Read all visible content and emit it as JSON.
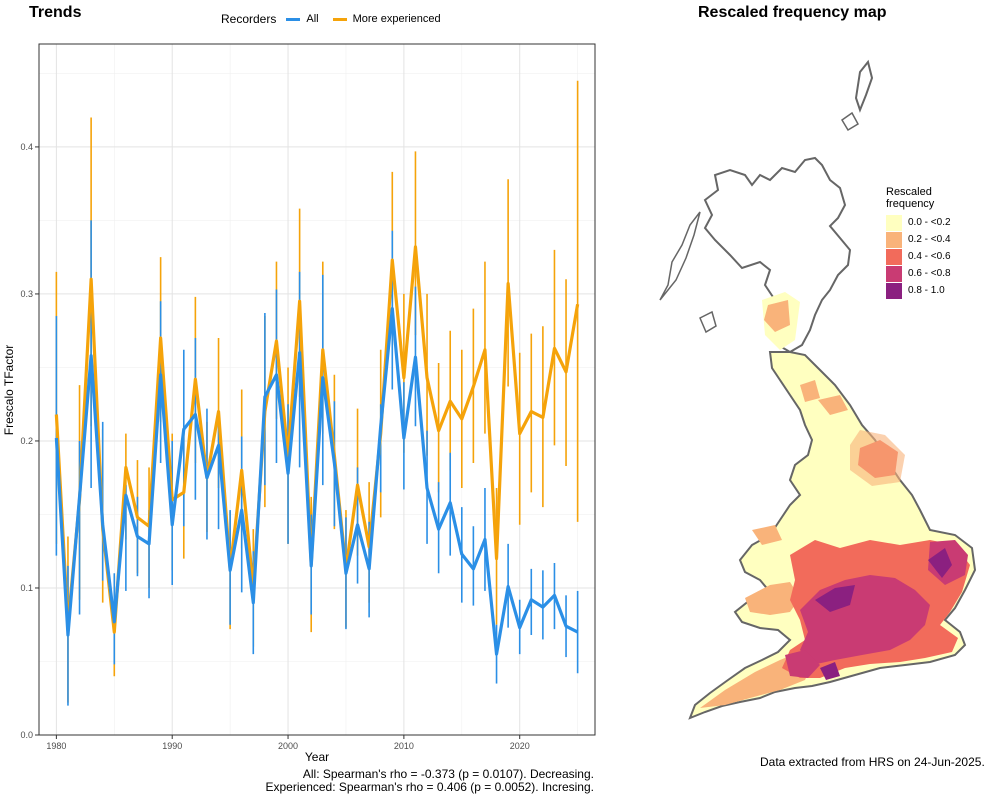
{
  "left_panel": {
    "title": "Trends",
    "legend": {
      "title": "Recorders",
      "items": [
        {
          "label": "All",
          "color": "#2b8fe6"
        },
        {
          "label": "More experienced",
          "color": "#f5a30a"
        }
      ]
    },
    "notes": {
      "all": "All: Spearman's rho = -0.373 (p = 0.0107). Decreasing.",
      "experienced": "Experienced: Spearman's rho = 0.406 (p = 0.0052). Incresing."
    }
  },
  "right_panel": {
    "title": "Rescaled frequency map",
    "legend_title": [
      "Rescaled",
      "frequency"
    ],
    "legend_items": [
      {
        "label": "0.0 - <0.2",
        "color": "#ffffc0"
      },
      {
        "label": "0.2 - <0.4",
        "color": "#f9b37a"
      },
      {
        "label": "0.4 - <0.6",
        "color": "#f26b5b"
      },
      {
        "label": "0.6 - <0.8",
        "color": "#c93b73"
      },
      {
        "label": "0.8 - 1.0",
        "color": "#8b2080"
      }
    ],
    "source": "Data extracted from HRS on 24-Jun-2025."
  },
  "chart_data": {
    "type": "line",
    "xlabel": "Year",
    "ylabel": "Frescalo TFactor",
    "xlim": [
      1978.5,
      2026.5
    ],
    "ylim": [
      0,
      0.47
    ],
    "x_ticks": [
      1980,
      1990,
      2000,
      2010,
      2020
    ],
    "y_ticks": [
      0.0,
      0.1,
      0.2,
      0.3,
      0.4
    ],
    "grid": true,
    "legend_position": "top",
    "series": [
      {
        "name": "All",
        "color": "#2b8fe6",
        "points": [
          {
            "x": 1980,
            "y": 0.202,
            "lo": 0.122,
            "hi": 0.285
          },
          {
            "x": 1981,
            "y": 0.068,
            "lo": 0.02,
            "hi": 0.115
          },
          {
            "x": 1982,
            "y": 0.162,
            "lo": 0.082,
            "hi": 0.2
          },
          {
            "x": 1983,
            "y": 0.258,
            "lo": 0.168,
            "hi": 0.35
          },
          {
            "x": 1984,
            "y": 0.143,
            "lo": 0.105,
            "hi": 0.213
          },
          {
            "x": 1985,
            "y": 0.077,
            "lo": 0.048,
            "hi": 0.11
          },
          {
            "x": 1986,
            "y": 0.163,
            "lo": 0.098,
            "hi": 0.17
          },
          {
            "x": 1987,
            "y": 0.135,
            "lo": 0.108,
            "hi": 0.162
          },
          {
            "x": 1988,
            "y": 0.13,
            "lo": 0.093,
            "hi": 0.153
          },
          {
            "x": 1989,
            "y": 0.245,
            "lo": 0.185,
            "hi": 0.295
          },
          {
            "x": 1990,
            "y": 0.143,
            "lo": 0.102,
            "hi": 0.2
          },
          {
            "x": 1991,
            "y": 0.208,
            "lo": 0.142,
            "hi": 0.262
          },
          {
            "x": 1992,
            "y": 0.218,
            "lo": 0.16,
            "hi": 0.27
          },
          {
            "x": 1993,
            "y": 0.175,
            "lo": 0.133,
            "hi": 0.222
          },
          {
            "x": 1994,
            "y": 0.197,
            "lo": 0.14,
            "hi": 0.215
          },
          {
            "x": 1995,
            "y": 0.112,
            "lo": 0.075,
            "hi": 0.153
          },
          {
            "x": 1996,
            "y": 0.153,
            "lo": 0.097,
            "hi": 0.203
          },
          {
            "x": 1997,
            "y": 0.09,
            "lo": 0.055,
            "hi": 0.125
          },
          {
            "x": 1998,
            "y": 0.23,
            "lo": 0.17,
            "hi": 0.287
          },
          {
            "x": 1999,
            "y": 0.245,
            "lo": 0.185,
            "hi": 0.303
          },
          {
            "x": 2000,
            "y": 0.178,
            "lo": 0.13,
            "hi": 0.225
          },
          {
            "x": 2001,
            "y": 0.26,
            "lo": 0.182,
            "hi": 0.315
          },
          {
            "x": 2002,
            "y": 0.115,
            "lo": 0.082,
            "hi": 0.15
          },
          {
            "x": 2003,
            "y": 0.243,
            "lo": 0.17,
            "hi": 0.313
          },
          {
            "x": 2004,
            "y": 0.185,
            "lo": 0.142,
            "hi": 0.227
          },
          {
            "x": 2005,
            "y": 0.11,
            "lo": 0.072,
            "hi": 0.148
          },
          {
            "x": 2006,
            "y": 0.143,
            "lo": 0.103,
            "hi": 0.182
          },
          {
            "x": 2007,
            "y": 0.113,
            "lo": 0.08,
            "hi": 0.145
          },
          {
            "x": 2008,
            "y": 0.21,
            "lo": 0.165,
            "hi": 0.225
          },
          {
            "x": 2009,
            "y": 0.29,
            "lo": 0.235,
            "hi": 0.343
          },
          {
            "x": 2010,
            "y": 0.202,
            "lo": 0.167,
            "hi": 0.24
          },
          {
            "x": 2011,
            "y": 0.257,
            "lo": 0.21,
            "hi": 0.305
          },
          {
            "x": 2012,
            "y": 0.168,
            "lo": 0.13,
            "hi": 0.207
          },
          {
            "x": 2013,
            "y": 0.14,
            "lo": 0.11,
            "hi": 0.172
          },
          {
            "x": 2014,
            "y": 0.158,
            "lo": 0.122,
            "hi": 0.192
          },
          {
            "x": 2015,
            "y": 0.123,
            "lo": 0.09,
            "hi": 0.155
          },
          {
            "x": 2016,
            "y": 0.113,
            "lo": 0.088,
            "hi": 0.142
          },
          {
            "x": 2017,
            "y": 0.133,
            "lo": 0.098,
            "hi": 0.168
          },
          {
            "x": 2018,
            "y": 0.055,
            "lo": 0.035,
            "hi": 0.075
          },
          {
            "x": 2019,
            "y": 0.101,
            "lo": 0.073,
            "hi": 0.13
          },
          {
            "x": 2020,
            "y": 0.073,
            "lo": 0.055,
            "hi": 0.092
          },
          {
            "x": 2021,
            "y": 0.092,
            "lo": 0.068,
            "hi": 0.113
          },
          {
            "x": 2022,
            "y": 0.087,
            "lo": 0.065,
            "hi": 0.112
          },
          {
            "x": 2023,
            "y": 0.095,
            "lo": 0.072,
            "hi": 0.117
          },
          {
            "x": 2024,
            "y": 0.074,
            "lo": 0.053,
            "hi": 0.095
          },
          {
            "x": 2025,
            "y": 0.07,
            "lo": 0.042,
            "hi": 0.098
          }
        ]
      },
      {
        "name": "More experienced",
        "color": "#f5a30a",
        "points": [
          {
            "x": 1980,
            "y": 0.218,
            "lo": 0.13,
            "hi": 0.315
          },
          {
            "x": 1981,
            "y": 0.075,
            "lo": 0.022,
            "hi": 0.135
          },
          {
            "x": 1982,
            "y": 0.16,
            "lo": 0.092,
            "hi": 0.238
          },
          {
            "x": 1983,
            "y": 0.31,
            "lo": 0.21,
            "hi": 0.42
          },
          {
            "x": 1984,
            "y": 0.14,
            "lo": 0.09,
            "hi": 0.208
          },
          {
            "x": 1985,
            "y": 0.07,
            "lo": 0.04,
            "hi": 0.108
          },
          {
            "x": 1986,
            "y": 0.182,
            "lo": 0.133,
            "hi": 0.205
          },
          {
            "x": 1987,
            "y": 0.148,
            "lo": 0.11,
            "hi": 0.187
          },
          {
            "x": 1988,
            "y": 0.142,
            "lo": 0.1,
            "hi": 0.182
          },
          {
            "x": 1989,
            "y": 0.27,
            "lo": 0.213,
            "hi": 0.325
          },
          {
            "x": 1990,
            "y": 0.16,
            "lo": 0.112,
            "hi": 0.205
          },
          {
            "x": 1991,
            "y": 0.165,
            "lo": 0.12,
            "hi": 0.21
          },
          {
            "x": 1992,
            "y": 0.242,
            "lo": 0.185,
            "hi": 0.298
          },
          {
            "x": 1993,
            "y": 0.175,
            "lo": 0.138,
            "hi": 0.213
          },
          {
            "x": 1994,
            "y": 0.22,
            "lo": 0.168,
            "hi": 0.27
          },
          {
            "x": 1995,
            "y": 0.113,
            "lo": 0.072,
            "hi": 0.152
          },
          {
            "x": 1996,
            "y": 0.18,
            "lo": 0.127,
            "hi": 0.235
          },
          {
            "x": 1997,
            "y": 0.1,
            "lo": 0.06,
            "hi": 0.14
          },
          {
            "x": 1998,
            "y": 0.22,
            "lo": 0.155,
            "hi": 0.285
          },
          {
            "x": 1999,
            "y": 0.268,
            "lo": 0.215,
            "hi": 0.322
          },
          {
            "x": 2000,
            "y": 0.19,
            "lo": 0.13,
            "hi": 0.25
          },
          {
            "x": 2001,
            "y": 0.295,
            "lo": 0.23,
            "hi": 0.358
          },
          {
            "x": 2002,
            "y": 0.116,
            "lo": 0.07,
            "hi": 0.162
          },
          {
            "x": 2003,
            "y": 0.262,
            "lo": 0.205,
            "hi": 0.322
          },
          {
            "x": 2004,
            "y": 0.19,
            "lo": 0.14,
            "hi": 0.245
          },
          {
            "x": 2005,
            "y": 0.113,
            "lo": 0.073,
            "hi": 0.153
          },
          {
            "x": 2006,
            "y": 0.17,
            "lo": 0.122,
            "hi": 0.222
          },
          {
            "x": 2007,
            "y": 0.128,
            "lo": 0.09,
            "hi": 0.172
          },
          {
            "x": 2008,
            "y": 0.205,
            "lo": 0.148,
            "hi": 0.262
          },
          {
            "x": 2009,
            "y": 0.323,
            "lo": 0.265,
            "hi": 0.383
          },
          {
            "x": 2010,
            "y": 0.243,
            "lo": 0.192,
            "hi": 0.3
          },
          {
            "x": 2011,
            "y": 0.332,
            "lo": 0.272,
            "hi": 0.397
          },
          {
            "x": 2012,
            "y": 0.243,
            "lo": 0.19,
            "hi": 0.3
          },
          {
            "x": 2013,
            "y": 0.207,
            "lo": 0.165,
            "hi": 0.253
          },
          {
            "x": 2014,
            "y": 0.227,
            "lo": 0.18,
            "hi": 0.275
          },
          {
            "x": 2015,
            "y": 0.215,
            "lo": 0.168,
            "hi": 0.262
          },
          {
            "x": 2016,
            "y": 0.237,
            "lo": 0.185,
            "hi": 0.29
          },
          {
            "x": 2017,
            "y": 0.262,
            "lo": 0.205,
            "hi": 0.322
          },
          {
            "x": 2018,
            "y": 0.12,
            "lo": 0.075,
            "hi": 0.168
          },
          {
            "x": 2019,
            "y": 0.307,
            "lo": 0.237,
            "hi": 0.378
          },
          {
            "x": 2020,
            "y": 0.205,
            "lo": 0.143,
            "hi": 0.26
          },
          {
            "x": 2021,
            "y": 0.22,
            "lo": 0.165,
            "hi": 0.273
          },
          {
            "x": 2022,
            "y": 0.216,
            "lo": 0.155,
            "hi": 0.278
          },
          {
            "x": 2023,
            "y": 0.263,
            "lo": 0.197,
            "hi": 0.33
          },
          {
            "x": 2024,
            "y": 0.247,
            "lo": 0.183,
            "hi": 0.31
          },
          {
            "x": 2025,
            "y": 0.293,
            "lo": 0.145,
            "hi": 0.445
          }
        ]
      }
    ]
  }
}
